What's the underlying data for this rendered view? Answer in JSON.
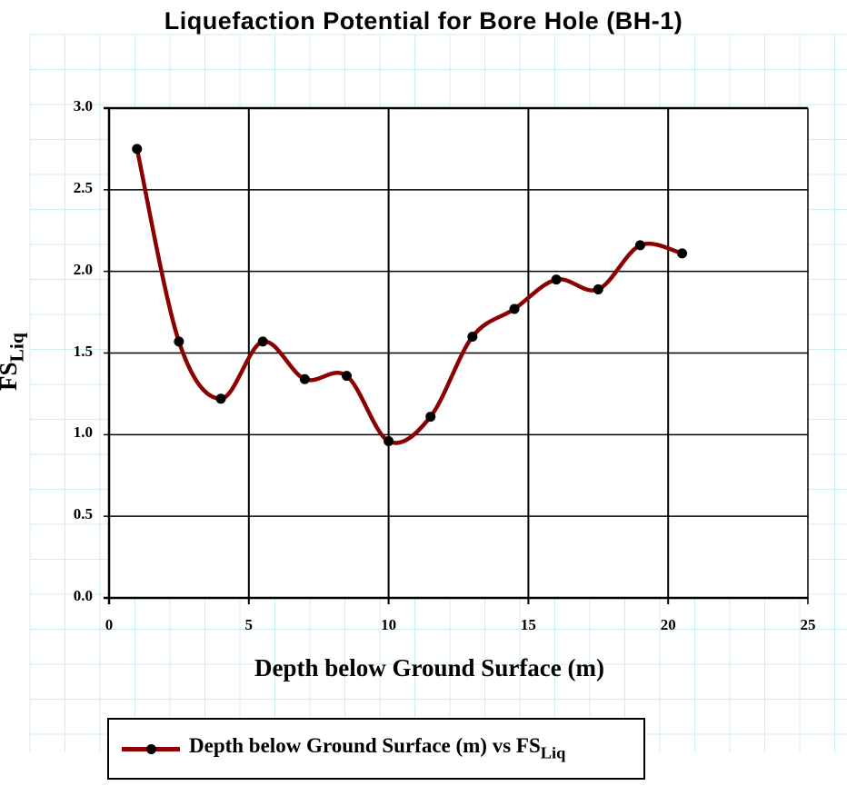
{
  "chart_data": {
    "type": "line",
    "title": "Liquefaction Potential for Bore Hole (BH-1)",
    "xlabel": "Depth below Ground Surface (m)",
    "ylabel": "FS",
    "ylabel_subscript": "Liq",
    "xlim": [
      0,
      25
    ],
    "ylim": [
      0,
      3.0
    ],
    "x_ticks": [
      "0",
      "5",
      "10",
      "15",
      "20",
      "25"
    ],
    "y_ticks": [
      "0.0",
      "0.5",
      "1.0",
      "1.5",
      "2.0",
      "2.5",
      "3.0"
    ],
    "grid": true,
    "smoothed": true,
    "legend_position": "bottom",
    "series": [
      {
        "name": "Depth below Ground Surface (m) vs FS",
        "name_subscript": "Liq",
        "color": "#8b0000",
        "marker_color": "#000000",
        "x": [
          1,
          2.5,
          4,
          5.5,
          7,
          8.5,
          10,
          11.5,
          13,
          14.5,
          16,
          17.5,
          19,
          20.5
        ],
        "values": [
          2.75,
          1.57,
          1.22,
          1.57,
          1.34,
          1.36,
          0.96,
          1.11,
          1.6,
          1.77,
          1.95,
          1.89,
          2.16,
          2.11
        ]
      }
    ]
  },
  "colors": {
    "background_grid": "#cdeef3",
    "plot_border": "#000000",
    "series_line": "#8b0000"
  }
}
